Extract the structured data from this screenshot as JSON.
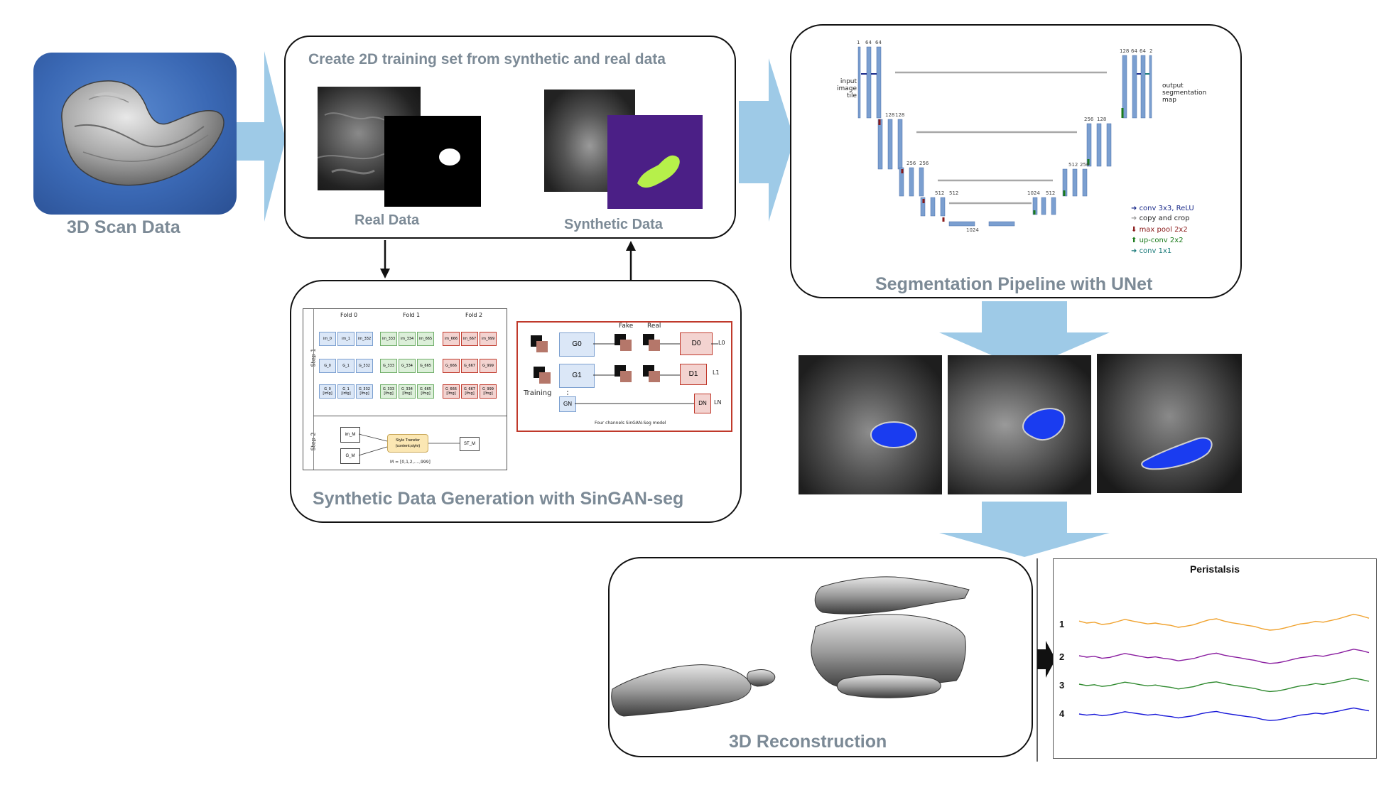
{
  "colors": {
    "arrow_blue": "#9ecae7",
    "heading_gray": "#7c8a96",
    "mask_green": "#b6f04a",
    "mask_purple": "#4b1f86",
    "seg_blue": "#1a3cf0",
    "unet_bar": "#7b9fd0"
  },
  "scan": {
    "label": "3D Scan Data"
  },
  "training": {
    "title": "Create 2D  training set from synthetic and real data",
    "real_label": "Real Data",
    "synthetic_label": "Synthetic Data"
  },
  "singan": {
    "title": "Synthetic Data Generation with SinGAN-seg",
    "folds": [
      "Fold 0",
      "Fold 1",
      "Fold 2"
    ],
    "step1": "Step 1",
    "step2": "Step 2",
    "im_row": [
      "im_0",
      "im_1",
      "im_332",
      "im_333",
      "im_334",
      "im_665",
      "im_666",
      "im_667",
      "im_999"
    ],
    "g_row": [
      "G_0",
      "G_1",
      "G_332",
      "G_333",
      "G_334",
      "G_665",
      "G_666",
      "G_667",
      "G_999"
    ],
    "img_row": [
      "G_0\n[img]",
      "G_1\n[img]",
      "G_332\n[img]",
      "G_333\n[img]",
      "G_334\n[img]",
      "G_665\n[img]",
      "G_666\n[img]",
      "G_667\n[img]",
      "G_999\n[img]"
    ],
    "im_m": "im_M",
    "g_m": "G_M",
    "style_transfer": "Style Transfer\n(content;style)",
    "st_m": "ST_M",
    "m_range": "M = [0,1,2,....,999]",
    "fake": "Fake",
    "real": "Real",
    "training": "Training",
    "g0": "G0",
    "g1": "G1",
    "gn": "GN",
    "d0": "D0",
    "d1": "D1",
    "dn": "DN",
    "l0": "L0",
    "l1": "L1",
    "ln": "LN",
    "model_caption": "Four channels SinGAN-Seg model"
  },
  "unet": {
    "title": "Segmentation Pipeline with UNet",
    "input_label": "input\nimage\ntile",
    "output_label": "output\nsegmentation\nmap",
    "channels": {
      "l1_left": [
        "1",
        "64",
        "64"
      ],
      "l1_right": [
        "128",
        "64",
        "64",
        "2"
      ],
      "l2_left": [
        "128",
        "128"
      ],
      "l2_right": [
        "256",
        "128"
      ],
      "l3_left": [
        "256",
        "256"
      ],
      "l3_right": [
        "512",
        "256"
      ],
      "l4_left": [
        "512",
        "512"
      ],
      "l4_right": [
        "1024",
        "512"
      ],
      "bottom": [
        "1024"
      ]
    },
    "legend": [
      "conv 3x3, ReLU",
      "copy and crop",
      "max pool 2x2",
      "up-conv 2x2",
      "conv 1x1"
    ]
  },
  "reconstruction": {
    "label": "3D Reconstruction"
  },
  "peristalsis": {
    "title": "Peristalsis",
    "series_labels": [
      "1",
      "2",
      "3",
      "4"
    ]
  },
  "chart_data": {
    "type": "line",
    "title": "Peristalsis",
    "series": [
      {
        "name": "1",
        "color": "#f0a22e",
        "values": [
          0.62,
          0.55,
          0.58,
          0.5,
          0.53,
          0.6,
          0.68,
          0.62,
          0.57,
          0.52,
          0.55,
          0.5,
          0.47,
          0.4,
          0.44,
          0.49,
          0.58,
          0.66,
          0.7,
          0.62,
          0.56,
          0.52,
          0.47,
          0.43,
          0.35,
          0.3,
          0.32,
          0.38,
          0.45,
          0.52,
          0.55,
          0.61,
          0.58,
          0.64,
          0.7,
          0.78,
          0.86,
          0.8,
          0.72
        ]
      },
      {
        "name": "2",
        "color": "#8a1ea0",
        "values": [
          0.55,
          0.5,
          0.53,
          0.46,
          0.49,
          0.56,
          0.63,
          0.58,
          0.53,
          0.48,
          0.51,
          0.46,
          0.43,
          0.37,
          0.41,
          0.45,
          0.53,
          0.6,
          0.64,
          0.57,
          0.52,
          0.48,
          0.43,
          0.39,
          0.32,
          0.28,
          0.3,
          0.35,
          0.42,
          0.48,
          0.51,
          0.56,
          0.53,
          0.59,
          0.64,
          0.71,
          0.78,
          0.73,
          0.66
        ]
      },
      {
        "name": "3",
        "color": "#2f8a2f",
        "values": [
          0.55,
          0.5,
          0.53,
          0.47,
          0.5,
          0.56,
          0.62,
          0.58,
          0.53,
          0.49,
          0.52,
          0.47,
          0.44,
          0.38,
          0.42,
          0.46,
          0.54,
          0.6,
          0.63,
          0.57,
          0.52,
          0.48,
          0.44,
          0.4,
          0.33,
          0.29,
          0.31,
          0.36,
          0.43,
          0.49,
          0.52,
          0.57,
          0.54,
          0.59,
          0.64,
          0.7,
          0.76,
          0.71,
          0.65
        ]
      },
      {
        "name": "4",
        "color": "#1616d8",
        "values": [
          0.5,
          0.46,
          0.49,
          0.44,
          0.47,
          0.52,
          0.58,
          0.54,
          0.5,
          0.46,
          0.49,
          0.44,
          0.41,
          0.36,
          0.4,
          0.44,
          0.51,
          0.56,
          0.59,
          0.53,
          0.49,
          0.45,
          0.41,
          0.38,
          0.31,
          0.27,
          0.29,
          0.34,
          0.4,
          0.46,
          0.49,
          0.53,
          0.5,
          0.55,
          0.6,
          0.66,
          0.71,
          0.66,
          0.61
        ]
      }
    ],
    "grid": false,
    "legend": "left labels"
  }
}
